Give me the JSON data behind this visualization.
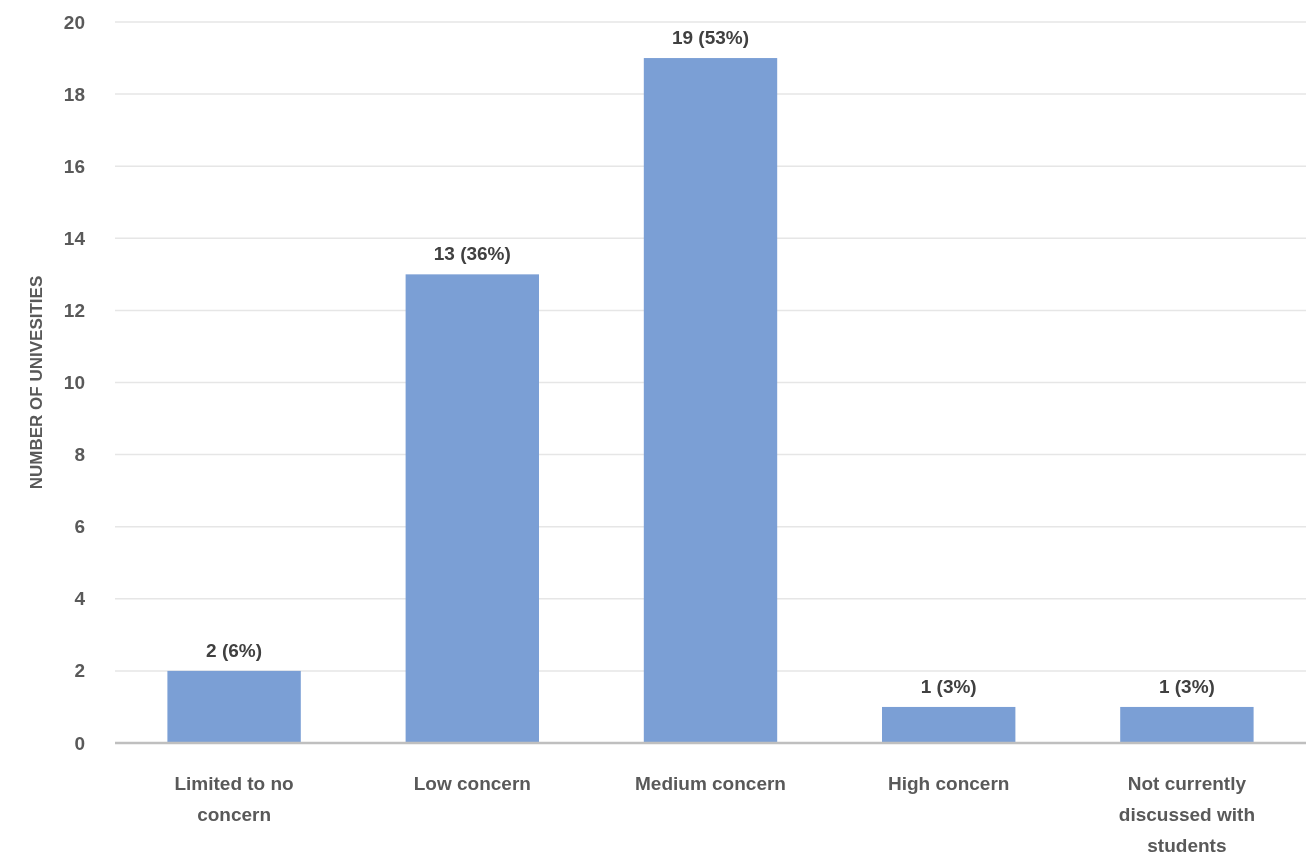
{
  "chart_data": {
    "type": "bar",
    "ylabel": "NUMBER OF UNIVESITIES",
    "categories": [
      "Limited to no concern",
      "Low concern",
      "Medium concern",
      "High concern",
      "Not currently discussed with students"
    ],
    "values": [
      2,
      13,
      19,
      1,
      1
    ],
    "value_labels": [
      "2 (6%)",
      "13 (36%)",
      "19 (53%)",
      "1 (3%)",
      "1 (3%)"
    ],
    "color": "#7b9fd5",
    "ylim": [
      0,
      20
    ],
    "yticks": [
      0,
      2,
      4,
      6,
      8,
      10,
      12,
      14,
      16,
      18,
      20
    ],
    "grid": "y"
  }
}
